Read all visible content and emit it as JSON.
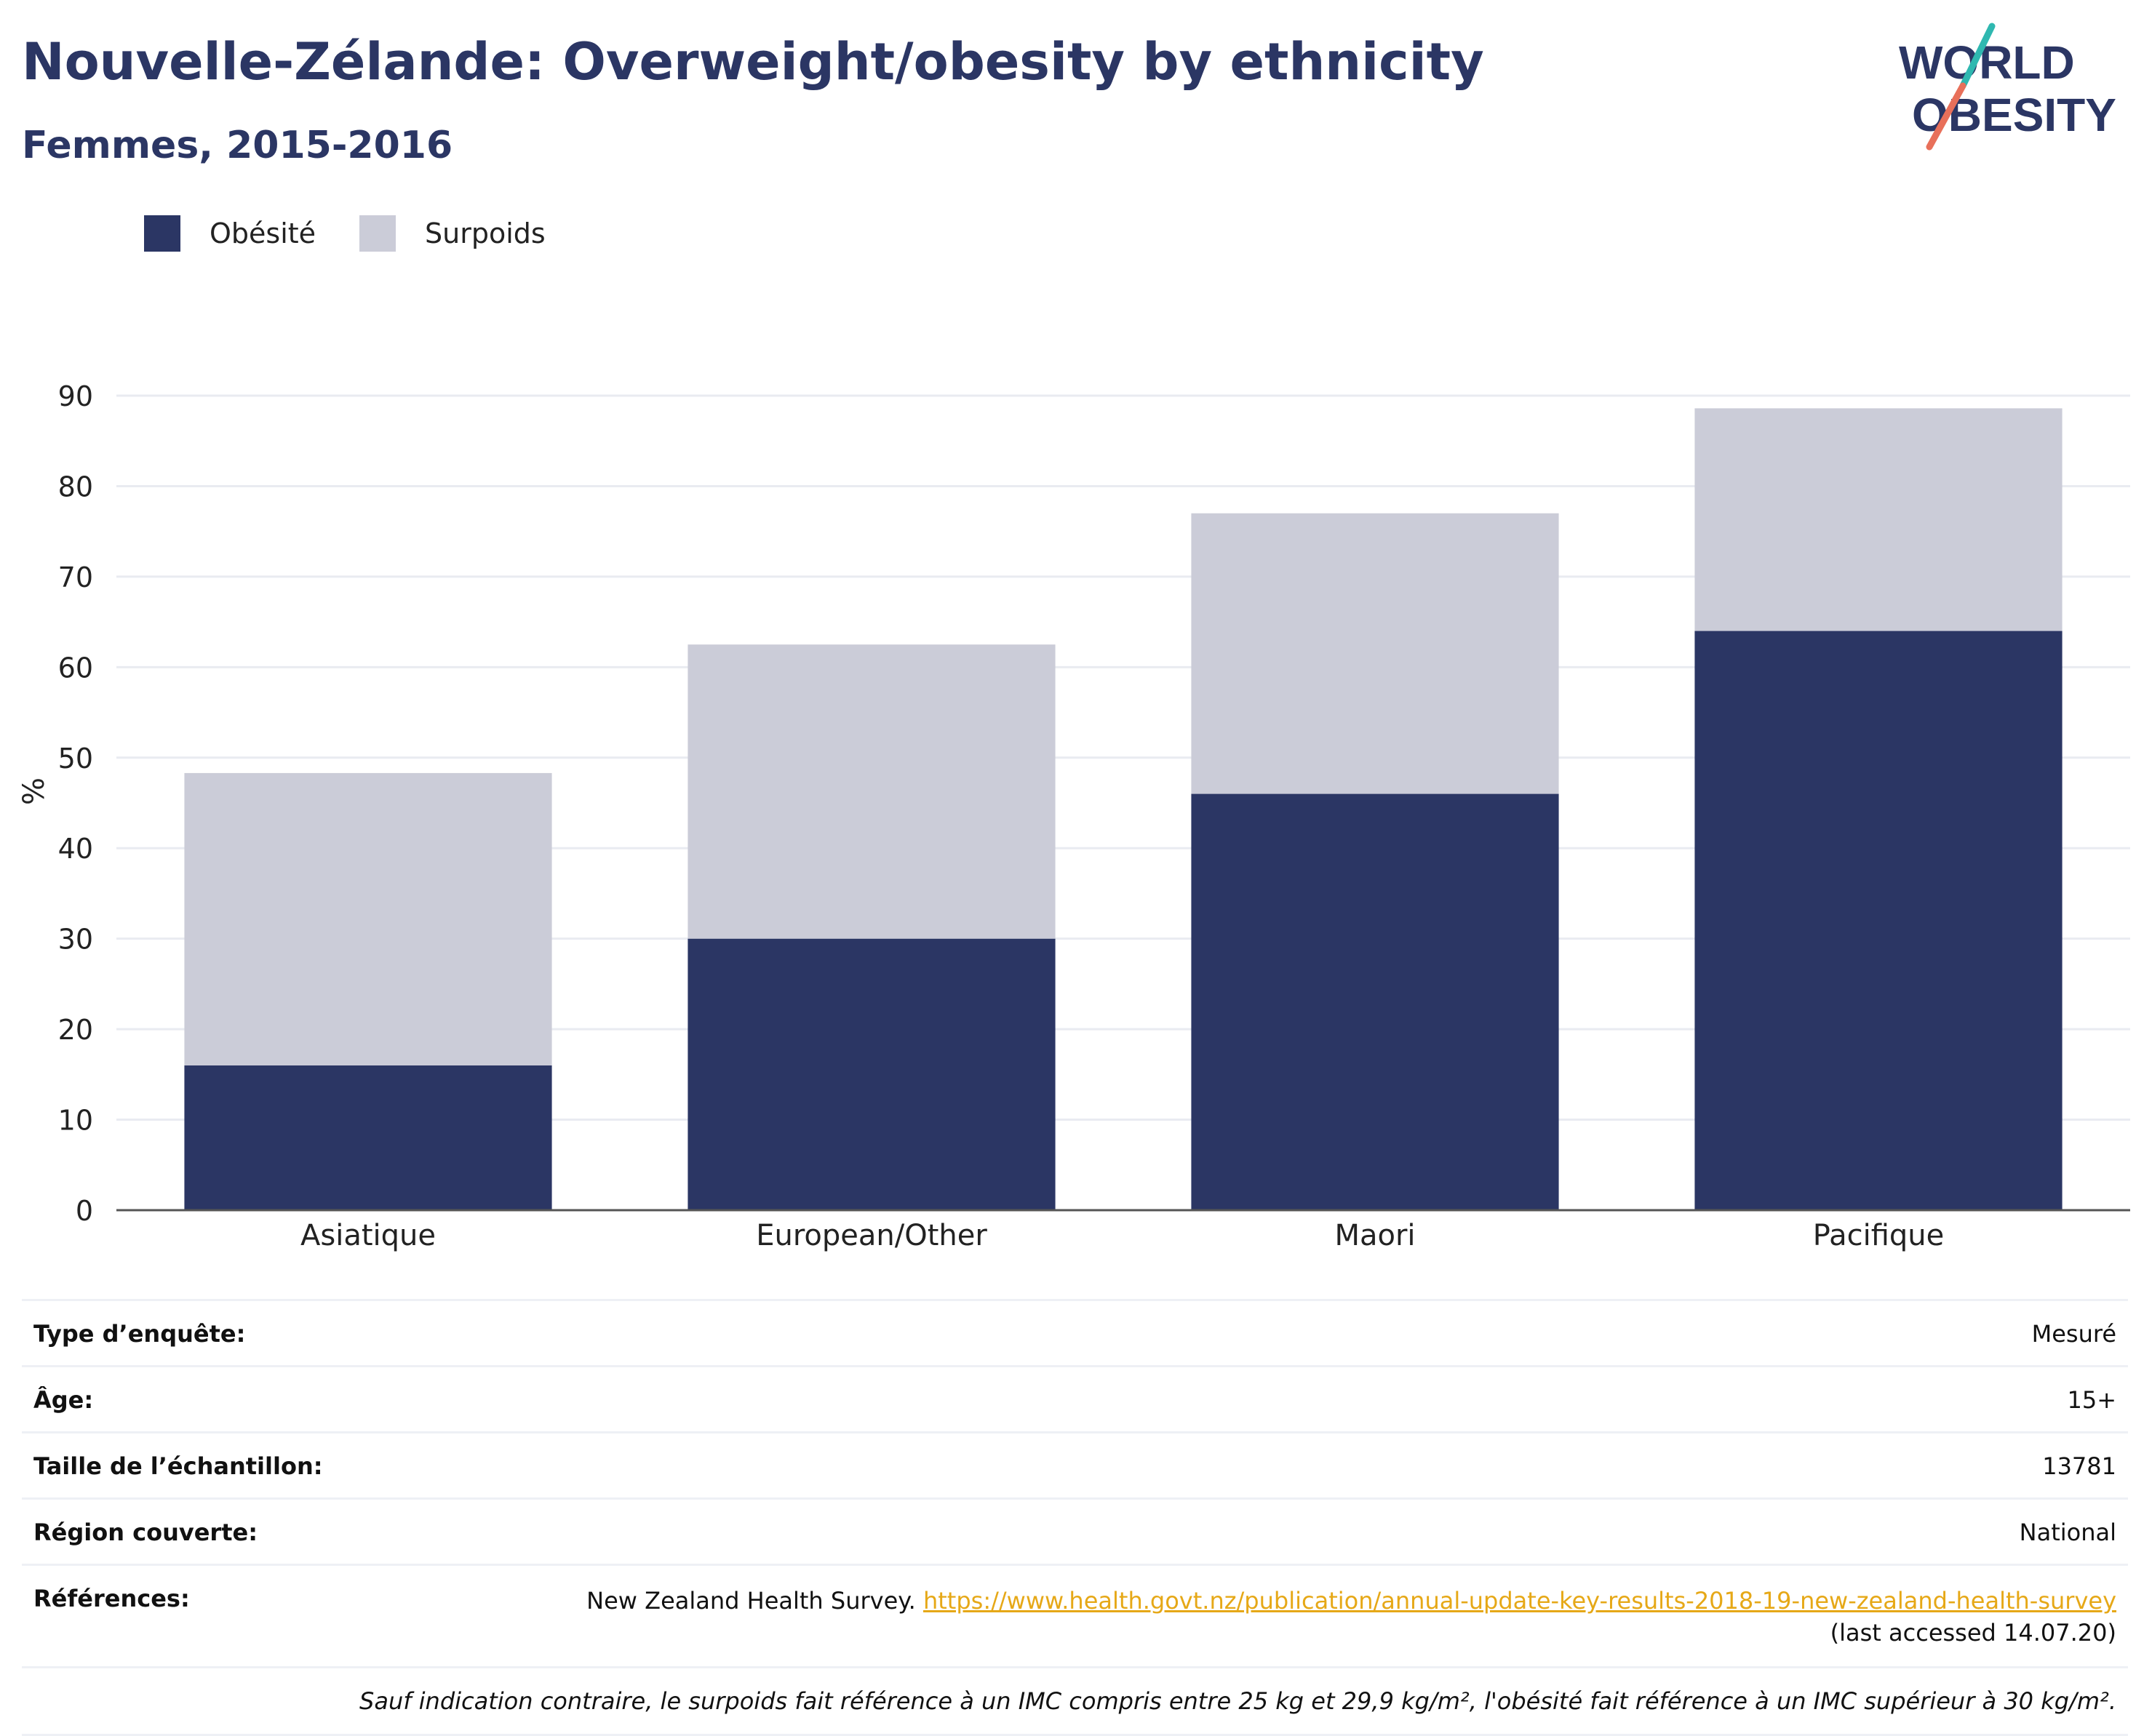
{
  "header": {
    "title": "Nouvelle-Zélande: Overweight/obesity by ethnicity",
    "subtitle": "Femmes, 2015-2016",
    "logo_line1": "WORLD",
    "logo_line2": "OBESITY"
  },
  "colors": {
    "obesity": "#2b3664",
    "overweight": "#cbccd8",
    "title": "#2b3664",
    "link": "#e6a817",
    "logo_teal": "#2fb8b0",
    "logo_coral": "#e8705a"
  },
  "chart_data": {
    "type": "bar",
    "stacked": true,
    "categories": [
      "Asiatique",
      "European/Other",
      "Maori",
      "Pacifique"
    ],
    "series": [
      {
        "name": "Obésité",
        "values": [
          16.0,
          30.0,
          46.0,
          64.0
        ]
      },
      {
        "name": "Surpoids",
        "values": [
          32.3,
          32.5,
          31.0,
          24.6
        ]
      }
    ],
    "title": "Nouvelle-Zélande: Overweight/obesity by ethnicity",
    "subtitle": "Femmes, 2015-2016",
    "xlabel": "",
    "ylabel": "%",
    "ylim": [
      0,
      90
    ],
    "yticks": [
      0,
      10,
      20,
      30,
      40,
      50,
      60,
      70,
      80,
      90
    ],
    "grid": true,
    "legend": "top-left"
  },
  "meta": {
    "survey_type_label": "Type d’enquête:",
    "survey_type_value": "Mesuré",
    "age_label": "Âge:",
    "age_value": "15+",
    "sample_label": "Taille de l’échantillon:",
    "sample_value": "13781",
    "region_label": "Région couverte:",
    "region_value": "National",
    "refs_label": "Références:",
    "refs_source": "New Zealand Health Survey.",
    "refs_link": "https://www.health.govt.nz/publication/annual-update-key-results-2018-19-new-zealand-health-survey",
    "refs_accessed": "(last accessed 14.07.20)",
    "note": "Sauf indication contraire, le surpoids fait référence à un IMC compris entre 25 kg et 29,9 kg/m², l'obésité fait référence à un IMC supérieur à 30 kg/m²."
  }
}
